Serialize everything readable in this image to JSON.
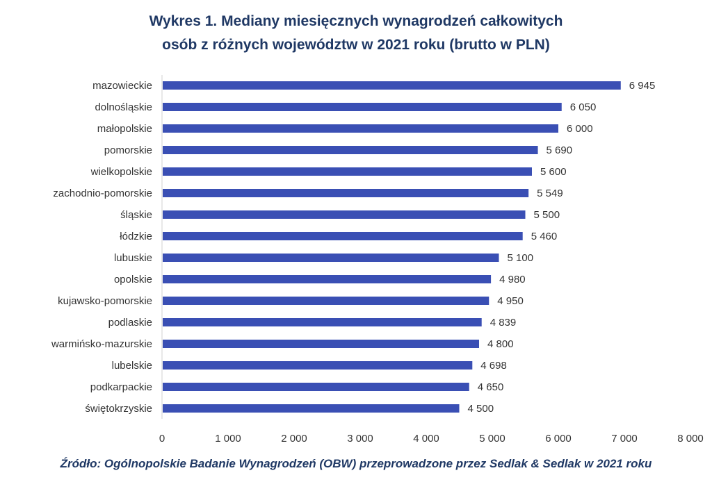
{
  "title_line1": "Wykres 1. Mediany miesięcznych wynagrodzeń całkowitych",
  "title_line2": "osób z różnych województw w 2021 roku (brutto w PLN)",
  "source": "Źródło: Ogólnopolskie Badanie Wynagrodzeń (OBW) przeprowadzone przez Sedlak & Sedlak w 2021 roku",
  "colors": {
    "bar": "#3a4fb4",
    "title": "#1f3864",
    "text": "#333333"
  },
  "chart_data": {
    "type": "bar",
    "orientation": "horizontal",
    "categories": [
      "mazowieckie",
      "dolnośląskie",
      "małopolskie",
      "pomorskie",
      "wielkopolskie",
      "zachodnio-pomorskie",
      "śląskie",
      "łódzkie",
      "lubuskie",
      "opolskie",
      "kujawsko-pomorskie",
      "podlaskie",
      "warmińsko-mazurskie",
      "lubelskie",
      "podkarpackie",
      "świętokrzyskie"
    ],
    "values": [
      6945,
      6050,
      6000,
      5690,
      5600,
      5549,
      5500,
      5460,
      5100,
      4980,
      4950,
      4839,
      4800,
      4698,
      4650,
      4500
    ],
    "value_labels": [
      "6 945",
      "6 050",
      "6 000",
      "5 690",
      "5 600",
      "5 549",
      "5 500",
      "5 460",
      "5 100",
      "4 980",
      "4 950",
      "4 839",
      "4 800",
      "4 698",
      "4 650",
      "4 500"
    ],
    "xlim": [
      0,
      8000
    ],
    "x_ticks": [
      0,
      1000,
      2000,
      3000,
      4000,
      5000,
      6000,
      7000,
      8000
    ],
    "x_tick_labels": [
      "0",
      "1 000",
      "2 000",
      "3 000",
      "4 000",
      "5 000",
      "6 000",
      "7 000",
      "8 000"
    ],
    "grid": false,
    "legend": false
  }
}
